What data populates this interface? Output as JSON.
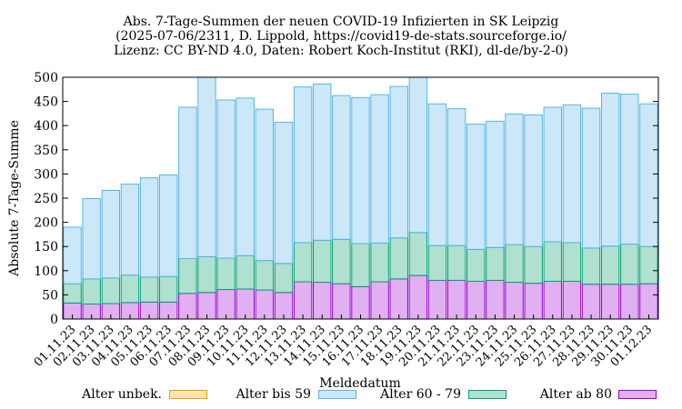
{
  "chart_data": {
    "type": "bar",
    "stacked": true,
    "title_lines": [
      "Abs. 7-Tage-Summen der neuen COVID-19 Infizierten in SK Leipzig",
      "(2025-07-06/2311, D. Lippold, https://covid19-de-stats.sourceforge.io/",
      "Lizenz: CC BY-ND 4.0, Daten: Robert Koch-Institut (RKI), dl-de/by-2-0)"
    ],
    "xlabel": "Meldedatum",
    "ylabel": "Absolute 7-Tage-Summe",
    "ylim": [
      0,
      500
    ],
    "yticks": [
      0,
      50,
      100,
      150,
      200,
      250,
      300,
      350,
      400,
      450,
      500
    ],
    "grid": false,
    "legend_position": "bottom",
    "categories": [
      "01.11.23",
      "02.11.23",
      "03.11.23",
      "04.11.23",
      "05.11.23",
      "06.11.23",
      "07.11.23",
      "08.11.23",
      "09.11.23",
      "10.11.23",
      "11.11.23",
      "12.11.23",
      "13.11.23",
      "14.11.23",
      "15.11.23",
      "16.11.23",
      "17.11.23",
      "18.11.23",
      "19.11.23",
      "20.11.23",
      "21.11.23",
      "22.11.23",
      "23.11.23",
      "24.11.23",
      "25.11.23",
      "26.11.23",
      "27.11.23",
      "28.11.23",
      "29.11.23",
      "30.11.23",
      "01.12.23"
    ],
    "series": [
      {
        "name": "Alter ab 80",
        "fill": "#e0b0f0",
        "stroke": "#9400d3",
        "values": [
          33,
          31,
          32,
          34,
          35,
          35,
          53,
          55,
          61,
          62,
          60,
          55,
          77,
          76,
          73,
          67,
          77,
          83,
          90,
          80,
          80,
          78,
          80,
          76,
          74,
          78,
          78,
          72,
          72,
          72,
          73
        ]
      },
      {
        "name": "Alter 60 - 79",
        "fill": "#b0e0d0",
        "stroke": "#009e73",
        "values": [
          40,
          52,
          53,
          57,
          52,
          53,
          72,
          74,
          65,
          69,
          61,
          60,
          81,
          87,
          92,
          89,
          80,
          85,
          89,
          72,
          72,
          66,
          68,
          78,
          76,
          82,
          80,
          75,
          79,
          83,
          77
        ]
      },
      {
        "name": "Alter bis 59",
        "fill": "#cce8f8",
        "stroke": "#56b4e9",
        "values": [
          117,
          166,
          181,
          188,
          205,
          210,
          313,
          371,
          327,
          326,
          313,
          292,
          322,
          323,
          297,
          302,
          307,
          313,
          321,
          293,
          283,
          259,
          261,
          270,
          272,
          278,
          285,
          289,
          316,
          310,
          295
        ]
      },
      {
        "name": "Alter unbek.",
        "fill": "#fde4b0",
        "stroke": "#e69f00",
        "values": [
          0,
          0,
          0,
          0,
          0,
          0,
          0,
          0,
          0,
          0,
          0,
          0,
          0,
          0,
          0,
          0,
          0,
          0,
          0,
          0,
          0,
          0,
          0,
          0,
          0,
          0,
          0,
          0,
          0,
          0,
          0
        ]
      }
    ],
    "legend_entries": [
      {
        "name": "Alter unbek.",
        "fill": "#fde4b0",
        "stroke": "#e69f00"
      },
      {
        "name": "Alter bis 59",
        "fill": "#cce8f8",
        "stroke": "#56b4e9"
      },
      {
        "name": "Alter 60 - 79",
        "fill": "#b0e0d0",
        "stroke": "#009e73"
      },
      {
        "name": "Alter ab 80",
        "fill": "#e0b0f0",
        "stroke": "#9400d3"
      }
    ]
  }
}
